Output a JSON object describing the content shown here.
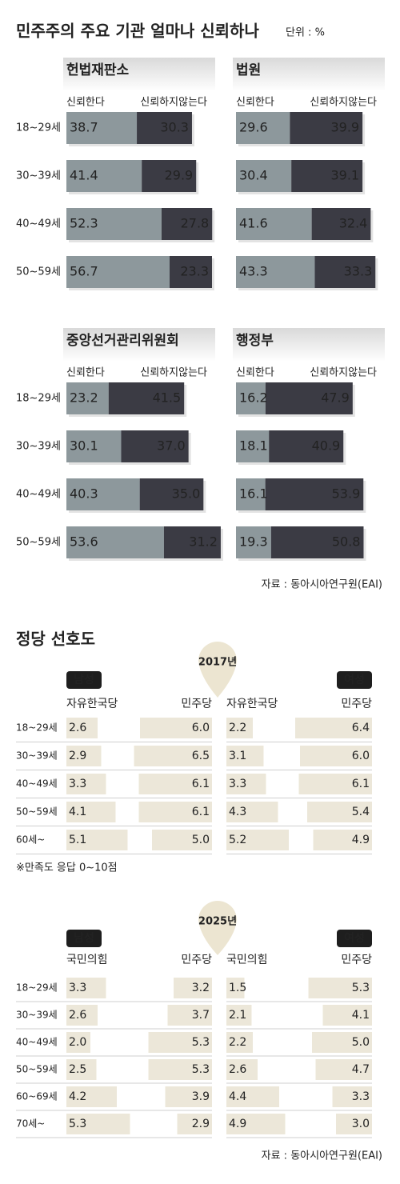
{
  "chart_data": [
    {
      "type": "bar",
      "title": "민주주의 주요 기관 얼마나 신뢰하나",
      "unit": "단위 : %",
      "categories": [
        "18~29세",
        "30~39세",
        "40~49세",
        "50~59세"
      ],
      "panels": [
        {
          "title": "헌법재판소",
          "series": [
            {
              "name": "신뢰한다",
              "color": "#8d989c",
              "values": [
                38.7,
                41.4,
                52.3,
                56.7
              ]
            },
            {
              "name": "신뢰하지않는다",
              "color": "#3b3b44",
              "values": [
                30.3,
                29.9,
                27.8,
                23.3
              ]
            }
          ]
        },
        {
          "title": "법원",
          "series": [
            {
              "name": "신뢰한다",
              "color": "#8d989c",
              "values": [
                29.6,
                30.4,
                41.6,
                43.3
              ]
            },
            {
              "name": "신뢰하지않는다",
              "color": "#3b3b44",
              "values": [
                39.9,
                39.1,
                32.4,
                33.3
              ]
            }
          ]
        },
        {
          "title": "중앙선거관리위원회",
          "series": [
            {
              "name": "신뢰한다",
              "color": "#8d989c",
              "values": [
                23.2,
                30.1,
                40.3,
                53.6
              ]
            },
            {
              "name": "신뢰하지않는다",
              "color": "#3b3b44",
              "values": [
                41.5,
                37,
                35,
                31.2
              ],
              "value_labels": [
                "41.5",
                "37.0",
                "35.0",
                "31.2"
              ]
            }
          ]
        },
        {
          "title": "행정부",
          "series": [
            {
              "name": "신뢰한다",
              "color": "#8d989c",
              "values": [
                16.2,
                18.1,
                16.1,
                19.3
              ]
            },
            {
              "name": "신뢰하지않는다",
              "color": "#3b3b44",
              "values": [
                47.9,
                40.9,
                53.9,
                50.8
              ]
            }
          ]
        }
      ],
      "source": "자료 : 동아시아연구원(EAI)"
    },
    {
      "type": "bar",
      "title": "정당 선호도",
      "note": "※만족도 응답 0~10점",
      "source": "자료 : 동아시아연구원(EAI)",
      "blocks": [
        {
          "year": "2017년",
          "categories": [
            "18~29세",
            "30~39세",
            "40~49세",
            "50~59세",
            "60세~"
          ],
          "panels": [
            {
              "title": "남성",
              "series": [
                {
                  "name": "자유한국당",
                  "color": "#ece7d9",
                  "values": [
                    2.6,
                    2.9,
                    3.3,
                    4.1,
                    5.1
                  ]
                },
                {
                  "name": "민주당",
                  "color": "#ece7d9",
                  "values": [
                    6,
                    6.5,
                    6.1,
                    6.1,
                    5
                  ],
                  "value_labels": [
                    "6.0",
                    "6.5",
                    "6.1",
                    "6.1",
                    "5.0"
                  ]
                }
              ]
            },
            {
              "title": "여성",
              "series": [
                {
                  "name": "자유한국당",
                  "color": "#ece7d9",
                  "values": [
                    2.2,
                    3.1,
                    3.3,
                    4.3,
                    5.2
                  ]
                },
                {
                  "name": "민주당",
                  "color": "#ece7d9",
                  "values": [
                    6.4,
                    6,
                    6.1,
                    5.4,
                    4.9
                  ],
                  "value_labels": [
                    "6.4",
                    "6.0",
                    "6.1",
                    "5.4",
                    "4.9"
                  ]
                }
              ]
            }
          ]
        },
        {
          "year": "2025년",
          "categories": [
            "18~29세",
            "30~39세",
            "40~49세",
            "50~59세",
            "60~69세",
            "70세~"
          ],
          "panels": [
            {
              "title": "남성",
              "series": [
                {
                  "name": "국민의힘",
                  "color": "#ece7d9",
                  "values": [
                    3.3,
                    2.6,
                    2,
                    2.5,
                    4.2,
                    5.3
                  ],
                  "value_labels": [
                    "3.3",
                    "2.6",
                    "2.0",
                    "2.5",
                    "4.2",
                    "5.3"
                  ]
                },
                {
                  "name": "민주당",
                  "color": "#ece7d9",
                  "values": [
                    3.2,
                    3.7,
                    5.3,
                    5.3,
                    3.9,
                    2.9
                  ]
                }
              ]
            },
            {
              "title": "여성",
              "series": [
                {
                  "name": "국민의힘",
                  "color": "#ece7d9",
                  "values": [
                    1.5,
                    2.1,
                    2.2,
                    2.6,
                    4.4,
                    4.9
                  ]
                },
                {
                  "name": "민주당",
                  "color": "#ece7d9",
                  "values": [
                    5.3,
                    4.1,
                    5,
                    4.7,
                    3.3,
                    3
                  ],
                  "value_labels": [
                    "5.3",
                    "4.1",
                    "5.0",
                    "4.7",
                    "3.3",
                    "3.0"
                  ]
                }
              ]
            }
          ]
        }
      ]
    }
  ]
}
